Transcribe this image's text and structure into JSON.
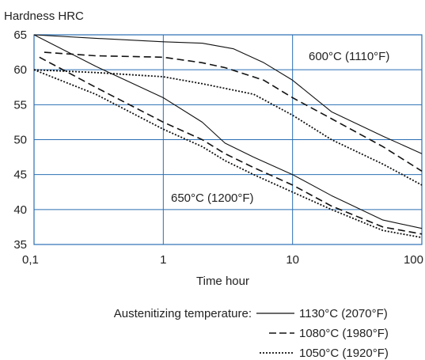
{
  "chart_data": {
    "type": "line",
    "ylabel": "Hardness HRC",
    "xlabel": "Time hour",
    "x_scale": "log",
    "xlim": [
      0.1,
      100
    ],
    "ylim": [
      35,
      65
    ],
    "x_ticks": [
      "0,1",
      "1",
      "10",
      "100"
    ],
    "y_ticks": [
      "35",
      "40",
      "45",
      "50",
      "55",
      "60",
      "65"
    ],
    "grid": true,
    "colors": {
      "grid": "#2a6fb3",
      "axis": "#2a6fb3",
      "line": "#111111"
    },
    "annotations": [
      "600°C (1110°F)",
      "650°C (1200°F)"
    ],
    "legend": {
      "title": "Austenitizing temperature:",
      "entries": [
        {
          "label": "1130°C (2070°F)",
          "style": "solid"
        },
        {
          "label": "1080°C (1980°F)",
          "style": "dashed"
        },
        {
          "label": "1050°C (1920°F)",
          "style": "dotted"
        }
      ]
    },
    "series": [
      {
        "group": "600°C (1110°F)",
        "style": "solid",
        "points": [
          [
            0.1,
            65
          ],
          [
            0.3,
            64.5
          ],
          [
            1,
            64
          ],
          [
            2,
            63.8
          ],
          [
            3.5,
            63
          ],
          [
            6,
            61
          ],
          [
            10,
            58.5
          ],
          [
            20,
            54
          ],
          [
            50,
            50.5
          ],
          [
            100,
            48
          ]
        ]
      },
      {
        "group": "600°C (1110°F)",
        "style": "dashed",
        "points": [
          [
            0.12,
            62.5
          ],
          [
            0.3,
            62
          ],
          [
            1,
            61.8
          ],
          [
            2,
            61
          ],
          [
            3,
            60.3
          ],
          [
            6,
            58.5
          ],
          [
            10,
            56
          ],
          [
            20,
            53
          ],
          [
            50,
            49
          ],
          [
            100,
            45.5
          ]
        ]
      },
      {
        "group": "600°C (1110°F)",
        "style": "dotted",
        "points": [
          [
            0.1,
            60
          ],
          [
            0.3,
            59.6
          ],
          [
            1,
            59
          ],
          [
            2,
            58
          ],
          [
            5,
            56.5
          ],
          [
            10,
            53.5
          ],
          [
            20,
            50
          ],
          [
            50,
            46.5
          ],
          [
            100,
            43.5
          ]
        ]
      },
      {
        "group": "650°C (1200°F)",
        "style": "solid",
        "points": [
          [
            0.1,
            65
          ],
          [
            0.3,
            60.5
          ],
          [
            1,
            56
          ],
          [
            2,
            52.5
          ],
          [
            3,
            49.5
          ],
          [
            5,
            47.5
          ],
          [
            10,
            45
          ],
          [
            20,
            42
          ],
          [
            50,
            38.5
          ],
          [
            100,
            37.3
          ]
        ]
      },
      {
        "group": "650°C (1200°F)",
        "style": "dashed",
        "points": [
          [
            0.11,
            61.8
          ],
          [
            0.3,
            57.5
          ],
          [
            1,
            52.5
          ],
          [
            2,
            50
          ],
          [
            3,
            48
          ],
          [
            5,
            46
          ],
          [
            10,
            43.5
          ],
          [
            20,
            40.5
          ],
          [
            50,
            37.5
          ],
          [
            100,
            36.5
          ]
        ]
      },
      {
        "group": "650°C (1200°F)",
        "style": "dotted",
        "points": [
          [
            0.1,
            60
          ],
          [
            0.3,
            56.5
          ],
          [
            1,
            51.5
          ],
          [
            2,
            49
          ],
          [
            3,
            47
          ],
          [
            5,
            45
          ],
          [
            10,
            42.5
          ],
          [
            20,
            40
          ],
          [
            50,
            37
          ],
          [
            100,
            36
          ]
        ]
      }
    ]
  }
}
